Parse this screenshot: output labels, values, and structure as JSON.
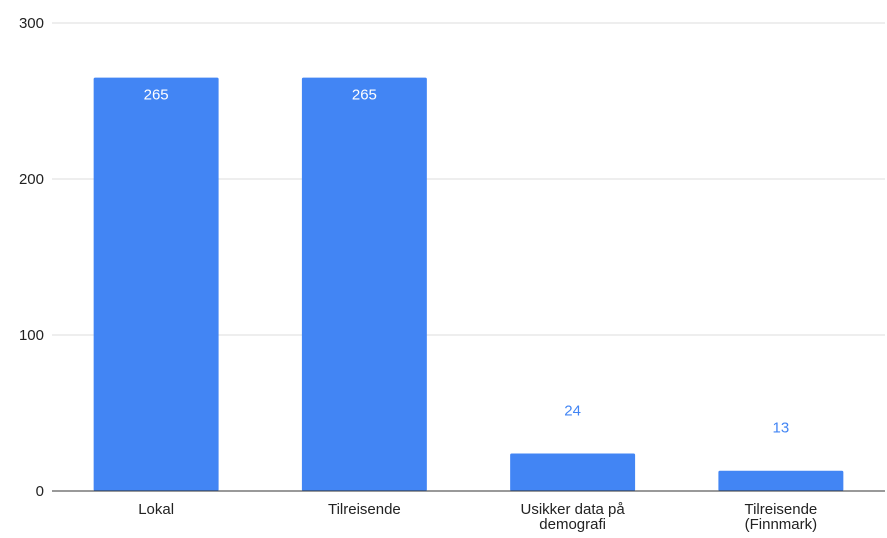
{
  "chart_data": {
    "type": "bar",
    "title": "",
    "xlabel": "",
    "ylabel": "",
    "categories": [
      [
        "Lokal"
      ],
      [
        "Tilreisende"
      ],
      [
        "Usikker data på",
        "demografi"
      ],
      [
        "Tilreisende",
        "(Finnmark)"
      ]
    ],
    "values": [
      265,
      265,
      24,
      13
    ],
    "ylim": [
      0,
      300
    ],
    "yticks": [
      0,
      100,
      200,
      300
    ],
    "grid": true,
    "legend": "none",
    "colors": {
      "bar": "#4285f4",
      "label_inside": "#ffffff",
      "label_outside": "#4285f4",
      "grid": "#dddddd",
      "axis": "#333333"
    }
  }
}
